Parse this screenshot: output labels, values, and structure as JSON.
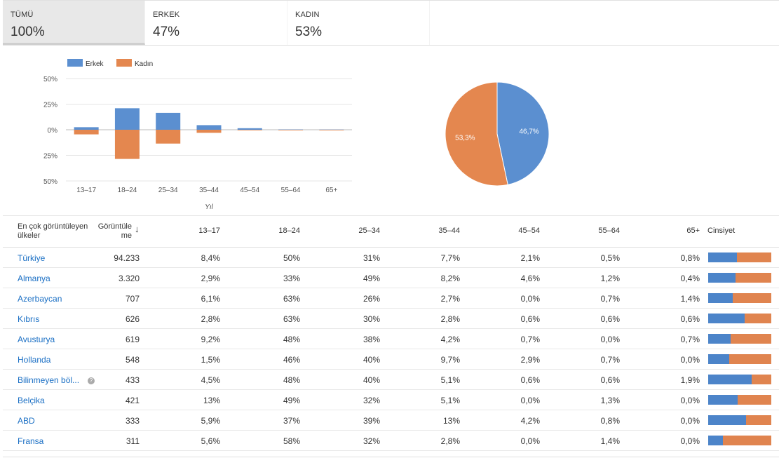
{
  "tabs": [
    {
      "label": "TÜMÜ",
      "value": "100%"
    },
    {
      "label": "ERKEK",
      "value": "47%"
    },
    {
      "label": "KADIN",
      "value": "53%"
    }
  ],
  "chart_data": [
    {
      "type": "bar",
      "categories": [
        "13–17",
        "18–24",
        "25–34",
        "35–44",
        "45–54",
        "55–64",
        "65+"
      ],
      "series": [
        {
          "name": "Erkek",
          "values": [
            2.5,
            21,
            16.5,
            4.5,
            1.5,
            0.3,
            0.2
          ]
        },
        {
          "name": "Kadın",
          "values": [
            -4.5,
            -28.5,
            -13.5,
            -3,
            -0.2,
            -0.3,
            -0.2
          ]
        }
      ],
      "xlabel": "Yıl",
      "ylim": [
        -50,
        50
      ],
      "yticks": [
        "50%",
        "25%",
        "0%",
        "25%",
        "50%"
      ],
      "legend": "top-left",
      "colors": {
        "Erkek": "#5b8fd0",
        "Kadın": "#e4874f"
      }
    },
    {
      "type": "pie",
      "slices": [
        {
          "label": "46,7%",
          "value": 46.7,
          "color": "#5b8fd0"
        },
        {
          "label": "53,3%",
          "value": 53.3,
          "color": "#e4874f"
        }
      ]
    }
  ],
  "table": {
    "headers": {
      "countries": "En çok görüntüleyen ülkeler",
      "views": "Görüntüle me",
      "c1": "13–17",
      "c2": "18–24",
      "c3": "25–34",
      "c4": "35–44",
      "c5": "45–54",
      "c6": "55–64",
      "c7": "65+",
      "gender": "Cinsiyet"
    },
    "rows": [
      {
        "country": "Türkiye",
        "views": "94.233",
        "v": [
          "8,4%",
          "50%",
          "31%",
          "7,7%",
          "2,1%",
          "0,5%",
          "0,8%"
        ],
        "male": 0.46
      },
      {
        "country": "Almanya",
        "views": "3.320",
        "v": [
          "2,9%",
          "33%",
          "49%",
          "8,2%",
          "4,6%",
          "1,2%",
          "0,4%"
        ],
        "male": 0.43
      },
      {
        "country": "Azerbaycan",
        "views": "707",
        "v": [
          "6,1%",
          "63%",
          "26%",
          "2,7%",
          "0,0%",
          "0,7%",
          "1,4%"
        ],
        "male": 0.39
      },
      {
        "country": "Kıbrıs",
        "views": "626",
        "v": [
          "2,8%",
          "63%",
          "30%",
          "2,8%",
          "0,6%",
          "0,6%",
          "0,6%"
        ],
        "male": 0.58
      },
      {
        "country": "Avusturya",
        "views": "619",
        "v": [
          "9,2%",
          "48%",
          "38%",
          "4,2%",
          "0,7%",
          "0,0%",
          "0,7%"
        ],
        "male": 0.36
      },
      {
        "country": "Hollanda",
        "views": "548",
        "v": [
          "1,5%",
          "46%",
          "40%",
          "9,7%",
          "2,9%",
          "0,7%",
          "0,0%"
        ],
        "male": 0.33
      },
      {
        "country": "Bilinmeyen böl...",
        "views": "433",
        "v": [
          "4,5%",
          "48%",
          "40%",
          "5,1%",
          "0,6%",
          "0,6%",
          "1,9%"
        ],
        "male": 0.69,
        "help": "?"
      },
      {
        "country": "Belçika",
        "views": "421",
        "v": [
          "13%",
          "49%",
          "32%",
          "5,1%",
          "0,0%",
          "1,3%",
          "0,0%"
        ],
        "male": 0.47
      },
      {
        "country": "ABD",
        "views": "333",
        "v": [
          "5,9%",
          "37%",
          "39%",
          "13%",
          "4,2%",
          "0,8%",
          "0,0%"
        ],
        "male": 0.6
      },
      {
        "country": "Fransa",
        "views": "311",
        "v": [
          "5,6%",
          "58%",
          "32%",
          "2,8%",
          "0,0%",
          "1,4%",
          "0,0%"
        ],
        "male": 0.23
      }
    ]
  }
}
